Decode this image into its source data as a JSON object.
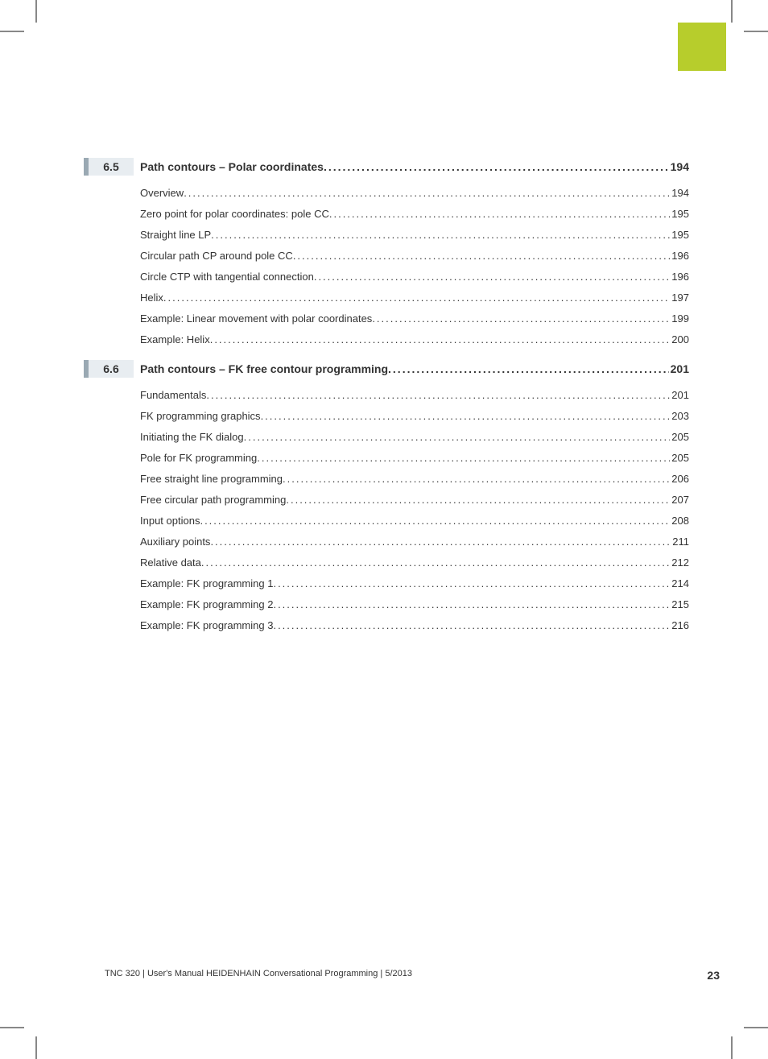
{
  "colors": {
    "tab": "#b7cd2c",
    "section_bar": "#9aa9b3",
    "section_num_bg": "#e8edf1",
    "text": "#333333",
    "crop": "#888888",
    "background": "#ffffff"
  },
  "sections": [
    {
      "number": "6.5",
      "title": "Path contours – Polar coordinates",
      "page": "194",
      "entries": [
        {
          "title": "Overview",
          "page": "194"
        },
        {
          "title": "Zero point for polar coordinates: pole CC",
          "page": "195"
        },
        {
          "title": "Straight line LP",
          "page": "195"
        },
        {
          "title": "Circular path CP around pole CC",
          "page": "196"
        },
        {
          "title": "Circle CTP with tangential connection",
          "page": "196"
        },
        {
          "title": "Helix",
          "page": "197"
        },
        {
          "title": "Example: Linear movement with polar coordinates",
          "page": "199"
        },
        {
          "title": "Example: Helix",
          "page": "200"
        }
      ]
    },
    {
      "number": "6.6",
      "title": "Path contours – FK free contour programming",
      "page": "201",
      "entries": [
        {
          "title": "Fundamentals",
          "page": "201"
        },
        {
          "title": "FK programming graphics",
          "page": "203"
        },
        {
          "title": "Initiating the FK dialog",
          "page": "205"
        },
        {
          "title": "Pole for FK programming",
          "page": "205"
        },
        {
          "title": "Free straight line programming",
          "page": "206"
        },
        {
          "title": "Free circular path programming",
          "page": "207"
        },
        {
          "title": "Input options",
          "page": "208"
        },
        {
          "title": "Auxiliary points",
          "page": "211"
        },
        {
          "title": "Relative data",
          "page": "212"
        },
        {
          "title": "Example: FK programming 1",
          "page": "214"
        },
        {
          "title": "Example: FK programming 2",
          "page": "215"
        },
        {
          "title": "Example: FK programming 3",
          "page": "216"
        }
      ]
    }
  ],
  "footer": {
    "text": "TNC 320 | User's Manual HEIDENHAIN Conversational Programming | 5/2013",
    "page": "23"
  }
}
